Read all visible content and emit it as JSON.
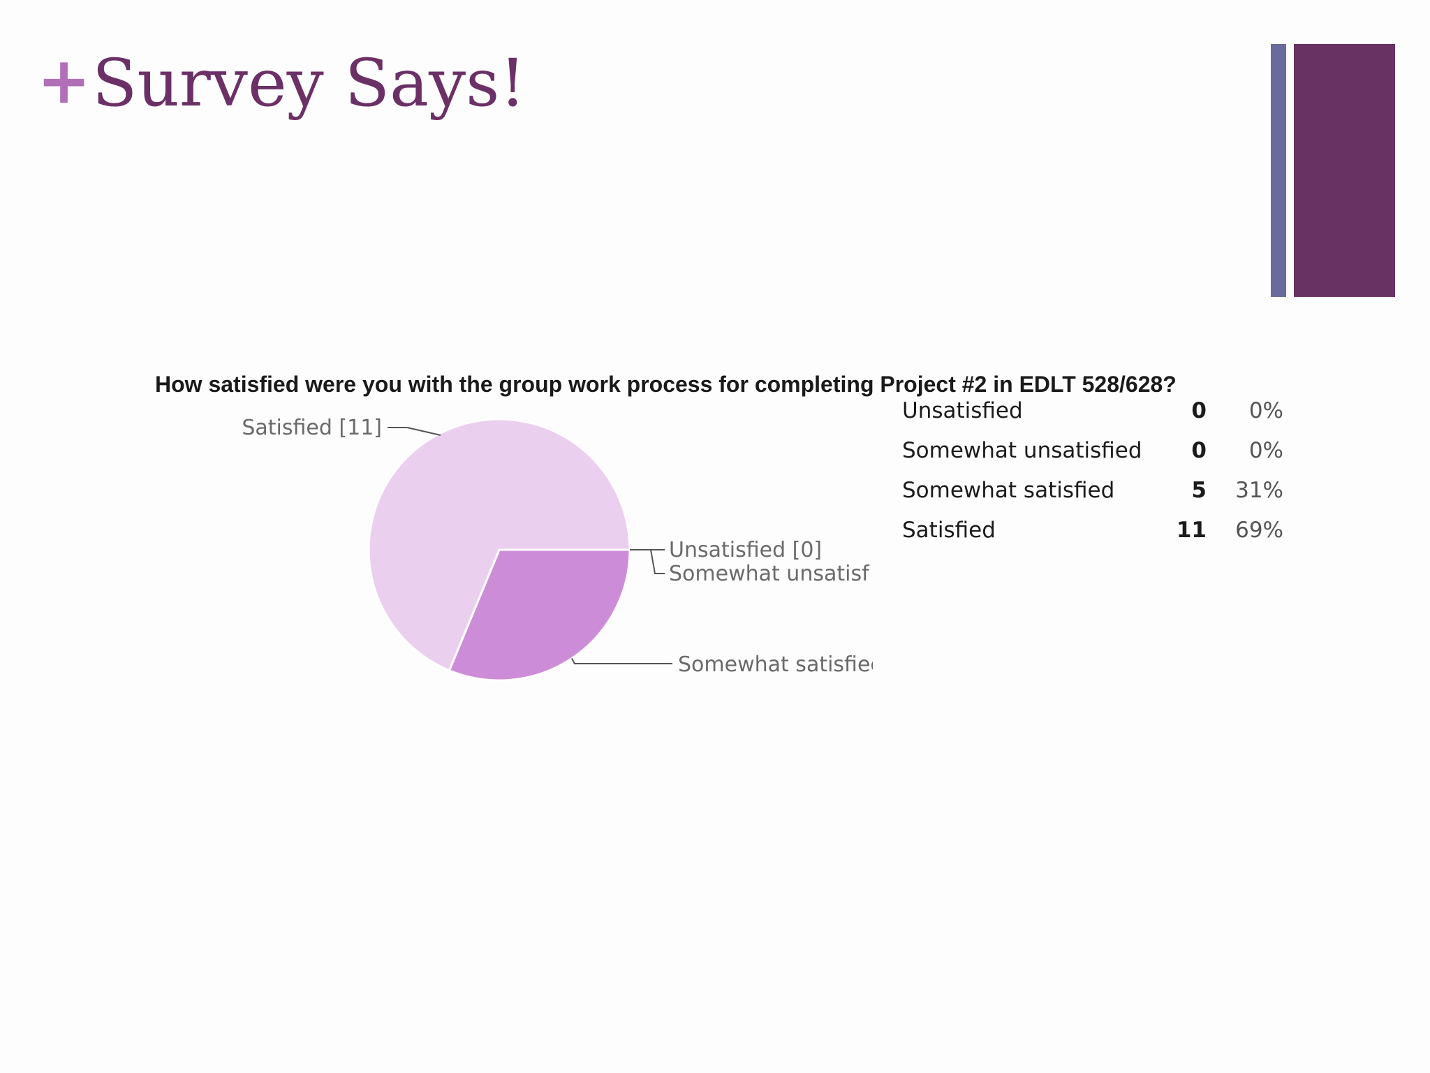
{
  "slide": {
    "bullet": "+",
    "title": "Survey Says!",
    "colors": {
      "accent": "#b06fb7",
      "title": "#6b3066",
      "bar_thin": "#6b6a9c",
      "bar_wide": "#683363"
    }
  },
  "chart_data": {
    "type": "pie",
    "title": "How satisfied were you with the group work process for completing Project #2 in EDLT 528/628?",
    "slices": [
      {
        "label": "Unsatisfied",
        "value": 0,
        "percent": "0%",
        "callout": "Unsatisfied [0]",
        "color": "#ead0ee"
      },
      {
        "label": "Somewhat unsatisfied",
        "value": 0,
        "percent": "0%",
        "callout": "Somewhat unsatisf",
        "color": "#e0b8e6"
      },
      {
        "label": "Somewhat satisfied",
        "value": 5,
        "percent": "31%",
        "callout": "Somewhat satisfiec",
        "color": "#cd8cd8"
      },
      {
        "label": "Satisfied",
        "value": 11,
        "percent": "69%",
        "callout": "Satisfied [11]",
        "color": "#ebcfee"
      }
    ],
    "summary_table": [
      {
        "label": "Unsatisfied",
        "count": "0",
        "percent": "0%"
      },
      {
        "label": "Somewhat unsatisfied",
        "count": "0",
        "percent": "0%"
      },
      {
        "label": "Somewhat satisfied",
        "count": "5",
        "percent": "31%"
      },
      {
        "label": "Satisfied",
        "count": "11",
        "percent": "69%"
      }
    ]
  }
}
